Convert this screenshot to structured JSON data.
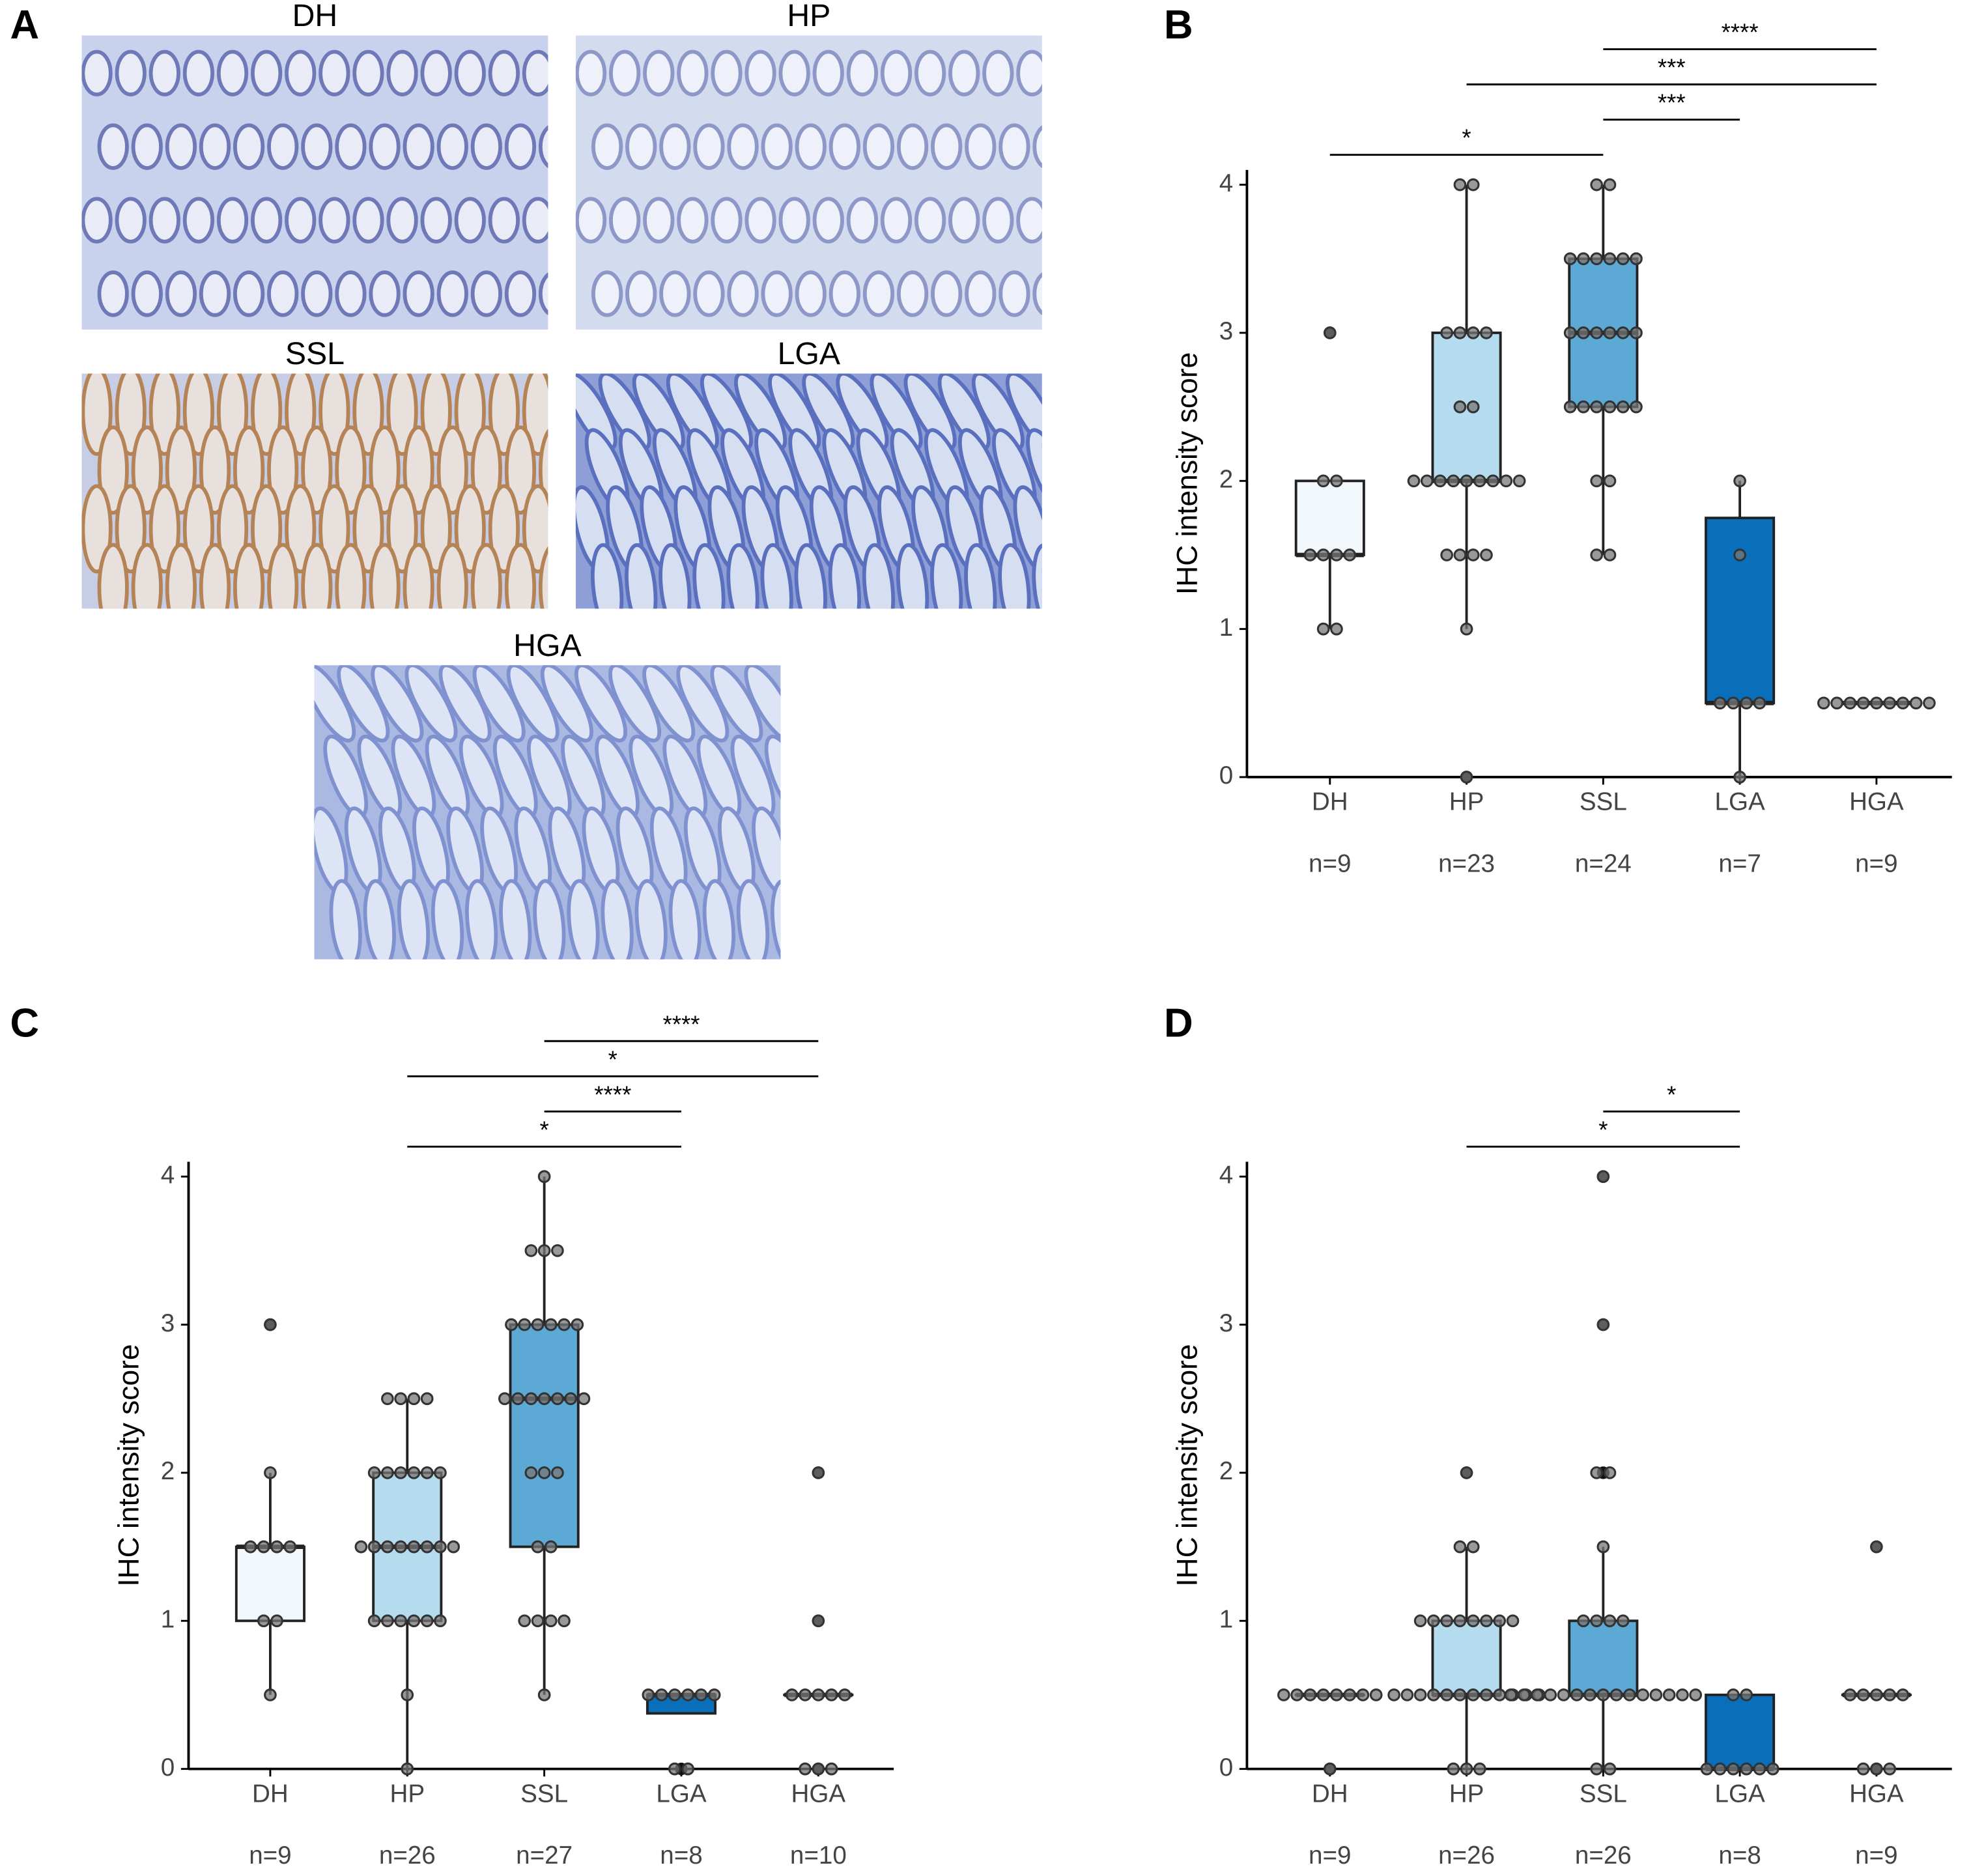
{
  "panel_a": {
    "label": "A",
    "images": [
      "DH",
      "HP",
      "SSL",
      "LGA",
      "HGA"
    ]
  },
  "chart_data": [
    {
      "type": "box",
      "panel": "B",
      "ylabel": "IHC intensity score",
      "categories": [
        "DH",
        "HP",
        "SSL",
        "LGA",
        "HGA"
      ],
      "n_labels": [
        "n=9",
        "n=23",
        "n=24",
        "n=7",
        "n=9"
      ],
      "colors": [
        "#f3f8fd",
        "#b4dbee",
        "#5da9d6",
        "#0a6fba",
        "#0a5aa0"
      ],
      "ylim": [
        0,
        4.1
      ],
      "yticks": [
        0,
        1,
        2,
        3,
        4
      ],
      "boxes": [
        {
          "q1": 1.5,
          "median": 1.5,
          "q3": 2,
          "whisker_low": 1,
          "whisker_high": 2,
          "outliers": [
            3
          ]
        },
        {
          "q1": 2,
          "median": 2,
          "q3": 3,
          "whisker_low": 1,
          "whisker_high": 4,
          "outliers": [
            0
          ]
        },
        {
          "q1": 2.5,
          "median": 3,
          "q3": 3.5,
          "whisker_low": 1.5,
          "whisker_high": 4,
          "outliers": []
        },
        {
          "q1": 0.5,
          "median": 0.5,
          "q3": 1.75,
          "whisker_low": 0,
          "whisker_high": 2,
          "outliers": []
        },
        {
          "q1": 0.5,
          "median": 0.5,
          "q3": 0.5,
          "whisker_low": 0.5,
          "whisker_high": 0.5,
          "outliers": []
        }
      ],
      "points": [
        [
          3,
          2,
          2,
          1.5,
          1.5,
          1.5,
          1.5,
          1,
          1
        ],
        [
          4,
          4,
          3,
          3,
          3,
          3,
          2.5,
          2.5,
          2,
          2,
          2,
          2,
          2,
          2,
          2,
          2,
          2,
          1.5,
          1.5,
          1.5,
          1.5,
          1,
          0
        ],
        [
          4,
          4,
          3.5,
          3.5,
          3.5,
          3.5,
          3.5,
          3.5,
          3,
          3,
          3,
          3,
          3,
          3,
          2.5,
          2.5,
          2.5,
          2.5,
          2.5,
          2.5,
          2,
          2,
          1.5,
          1.5
        ],
        [
          2,
          1.5,
          0.5,
          0.5,
          0.5,
          0.5,
          0
        ],
        [
          0.5,
          0.5,
          0.5,
          0.5,
          0.5,
          0.5,
          0.5,
          0.5,
          0.5
        ]
      ],
      "brackets": [
        {
          "from": "DH",
          "to": "SSL",
          "label": "*"
        },
        {
          "from": "SSL",
          "to": "LGA",
          "label": "***"
        },
        {
          "from": "HP",
          "to": "HGA",
          "label": "***"
        },
        {
          "from": "SSL",
          "to": "HGA",
          "label": "****"
        }
      ]
    },
    {
      "type": "box",
      "panel": "C",
      "ylabel": "IHC intensity score",
      "categories": [
        "DH",
        "HP",
        "SSL",
        "LGA",
        "HGA"
      ],
      "n_labels": [
        "n=9",
        "n=26",
        "n=27",
        "n=8",
        "n=10"
      ],
      "colors": [
        "#f3f8fd",
        "#b4dbee",
        "#5da9d6",
        "#0a6fba",
        "#0a5aa0"
      ],
      "ylim": [
        0,
        4.1
      ],
      "yticks": [
        0,
        1,
        2,
        3,
        4
      ],
      "boxes": [
        {
          "q1": 1,
          "median": 1.5,
          "q3": 1.5,
          "whisker_low": 0.5,
          "whisker_high": 2,
          "outliers": [
            3
          ]
        },
        {
          "q1": 1,
          "median": 1.5,
          "q3": 2,
          "whisker_low": 0,
          "whisker_high": 2.5,
          "outliers": []
        },
        {
          "q1": 1.5,
          "median": 2.5,
          "q3": 3,
          "whisker_low": 0.5,
          "whisker_high": 4,
          "outliers": []
        },
        {
          "q1": 0.375,
          "median": 0.5,
          "q3": 0.5,
          "whisker_low": 0.375,
          "whisker_high": 0.5,
          "outliers": [
            0
          ]
        },
        {
          "q1": 0.5,
          "median": 0.5,
          "q3": 0.5,
          "whisker_low": 0.5,
          "whisker_high": 0.5,
          "outliers": [
            2,
            1,
            0
          ]
        }
      ],
      "points": [
        [
          3,
          2,
          1.5,
          1.5,
          1.5,
          1.5,
          1,
          1,
          0.5
        ],
        [
          2.5,
          2.5,
          2.5,
          2.5,
          2,
          2,
          2,
          2,
          2,
          2,
          1.5,
          1.5,
          1.5,
          1.5,
          1.5,
          1.5,
          1.5,
          1.5,
          1,
          1,
          1,
          1,
          1,
          1,
          0.5,
          0
        ],
        [
          4,
          3.5,
          3.5,
          3.5,
          3,
          3,
          3,
          3,
          3,
          3,
          2.5,
          2.5,
          2.5,
          2.5,
          2.5,
          2.5,
          2.5,
          2,
          2,
          2,
          1.5,
          1.5,
          1,
          1,
          1,
          1,
          0.5
        ],
        [
          0.5,
          0.5,
          0.5,
          0.5,
          0.5,
          0.5,
          0,
          0
        ],
        [
          2,
          1,
          0.5,
          0.5,
          0.5,
          0.5,
          0.5,
          0,
          0,
          0
        ]
      ],
      "brackets": [
        {
          "from": "HP",
          "to": "LGA",
          "label": "*"
        },
        {
          "from": "SSL",
          "to": "LGA",
          "label": "****"
        },
        {
          "from": "HP",
          "to": "HGA",
          "label": "*"
        },
        {
          "from": "SSL",
          "to": "HGA",
          "label": "****"
        }
      ]
    },
    {
      "type": "box",
      "panel": "D",
      "ylabel": "IHC intensity score",
      "categories": [
        "DH",
        "HP",
        "SSL",
        "LGA",
        "HGA"
      ],
      "n_labels": [
        "n=9",
        "n=26",
        "n=26",
        "n=8",
        "n=9"
      ],
      "colors": [
        "#f3f8fd",
        "#b4dbee",
        "#5da9d6",
        "#0a6fba",
        "#0a5aa0"
      ],
      "ylim": [
        0,
        4.1
      ],
      "yticks": [
        0,
        1,
        2,
        3,
        4
      ],
      "boxes": [
        {
          "q1": 0.5,
          "median": 0.5,
          "q3": 0.5,
          "whisker_low": 0.5,
          "whisker_high": 0.5,
          "outliers": [
            0
          ]
        },
        {
          "q1": 0.5,
          "median": 0.5,
          "q3": 1,
          "whisker_low": 0,
          "whisker_high": 1.5,
          "outliers": [
            2
          ]
        },
        {
          "q1": 0.5,
          "median": 0.5,
          "q3": 1,
          "whisker_low": 0,
          "whisker_high": 1.5,
          "outliers": [
            4,
            3,
            2
          ]
        },
        {
          "q1": 0,
          "median": 0,
          "q3": 0.5,
          "whisker_low": 0,
          "whisker_high": 0.5,
          "outliers": []
        },
        {
          "q1": 0.5,
          "median": 0.5,
          "q3": 0.5,
          "whisker_low": 0.5,
          "whisker_high": 0.5,
          "outliers": [
            1.5,
            0
          ]
        }
      ],
      "points": [
        [
          0.5,
          0.5,
          0.5,
          0.5,
          0.5,
          0.5,
          0.5,
          0.5,
          0
        ],
        [
          2,
          1.5,
          1.5,
          1,
          1,
          1,
          1,
          1,
          1,
          1,
          1,
          0.5,
          0.5,
          0.5,
          0.5,
          0.5,
          0.5,
          0.5,
          0.5,
          0.5,
          0.5,
          0.5,
          0.5,
          0,
          0,
          0
        ],
        [
          4,
          3,
          2,
          2,
          1.5,
          1,
          1,
          1,
          1,
          0.5,
          0.5,
          0.5,
          0.5,
          0.5,
          0.5,
          0.5,
          0.5,
          0.5,
          0.5,
          0.5,
          0.5,
          0.5,
          0.5,
          0.5,
          0,
          0
        ],
        [
          0.5,
          0.5,
          0,
          0,
          0,
          0,
          0,
          0
        ],
        [
          1.5,
          0.5,
          0.5,
          0.5,
          0.5,
          0.5,
          0,
          0,
          0
        ]
      ],
      "brackets": [
        {
          "from": "HP",
          "to": "LGA",
          "label": "*"
        },
        {
          "from": "SSL",
          "to": "LGA",
          "label": "*"
        }
      ]
    }
  ]
}
